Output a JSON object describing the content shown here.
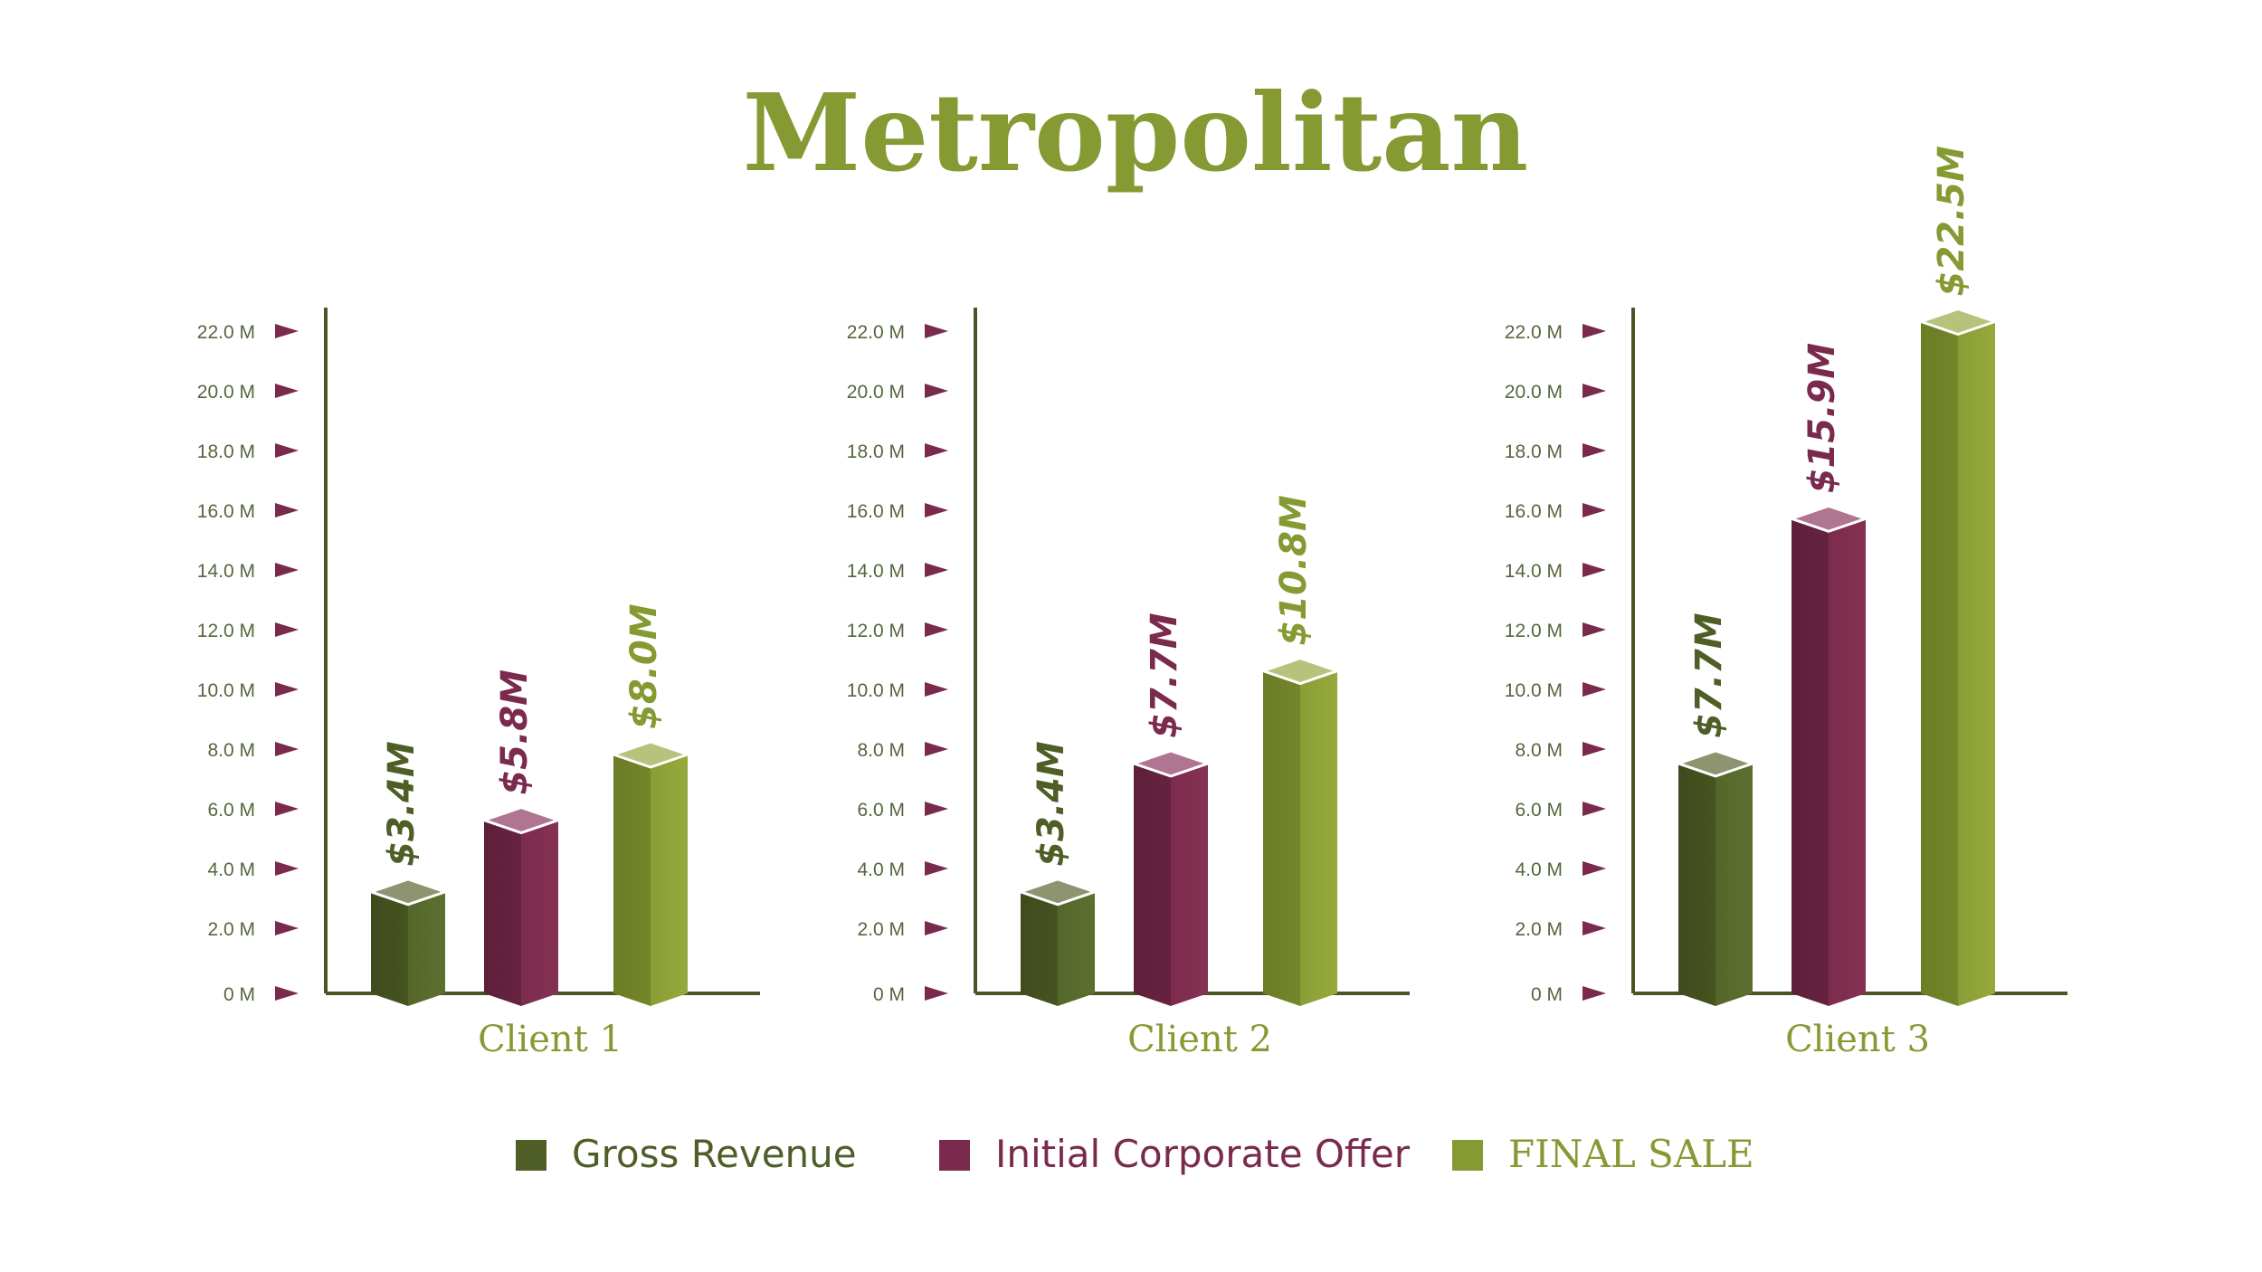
{
  "title": "Metropolitan",
  "colors": {
    "gross": "#4f5e27",
    "offer": "#7a2a4c",
    "final": "#869a33",
    "title": "#869a33",
    "axis": "#4a5525",
    "tick_text": "#55663f",
    "arrow": "#7a2a4c",
    "client_label": "#869a33"
  },
  "chart_data": {
    "type": "bar",
    "y_unit": "M",
    "ylim": [
      0,
      22
    ],
    "yticks": [
      "0 M",
      "2.0 M",
      "4.0 M",
      "6.0 M",
      "8.0 M",
      "10.0 M",
      "12.0 M",
      "14.0 M",
      "16.0 M",
      "18.0 M",
      "20.0 M",
      "22.0 M"
    ],
    "categories": [
      "Client 1",
      "Client 2",
      "Client 3"
    ],
    "series": [
      {
        "name": "Gross Revenue",
        "values": [
          3.4,
          3.4,
          7.7
        ],
        "labels": [
          "$3.4M",
          "$3.4M",
          "$7.7M"
        ]
      },
      {
        "name": "Initial Corporate Offer",
        "values": [
          5.8,
          7.7,
          15.9
        ],
        "labels": [
          "$5.8M",
          "$7.7M",
          "$15.9M"
        ]
      },
      {
        "name": "FINAL SALE",
        "values": [
          8.0,
          10.8,
          22.5
        ],
        "labels": [
          "$8.0M",
          "$10.8M",
          "$22.5M"
        ]
      }
    ],
    "legend_position": "bottom",
    "grid": false
  }
}
